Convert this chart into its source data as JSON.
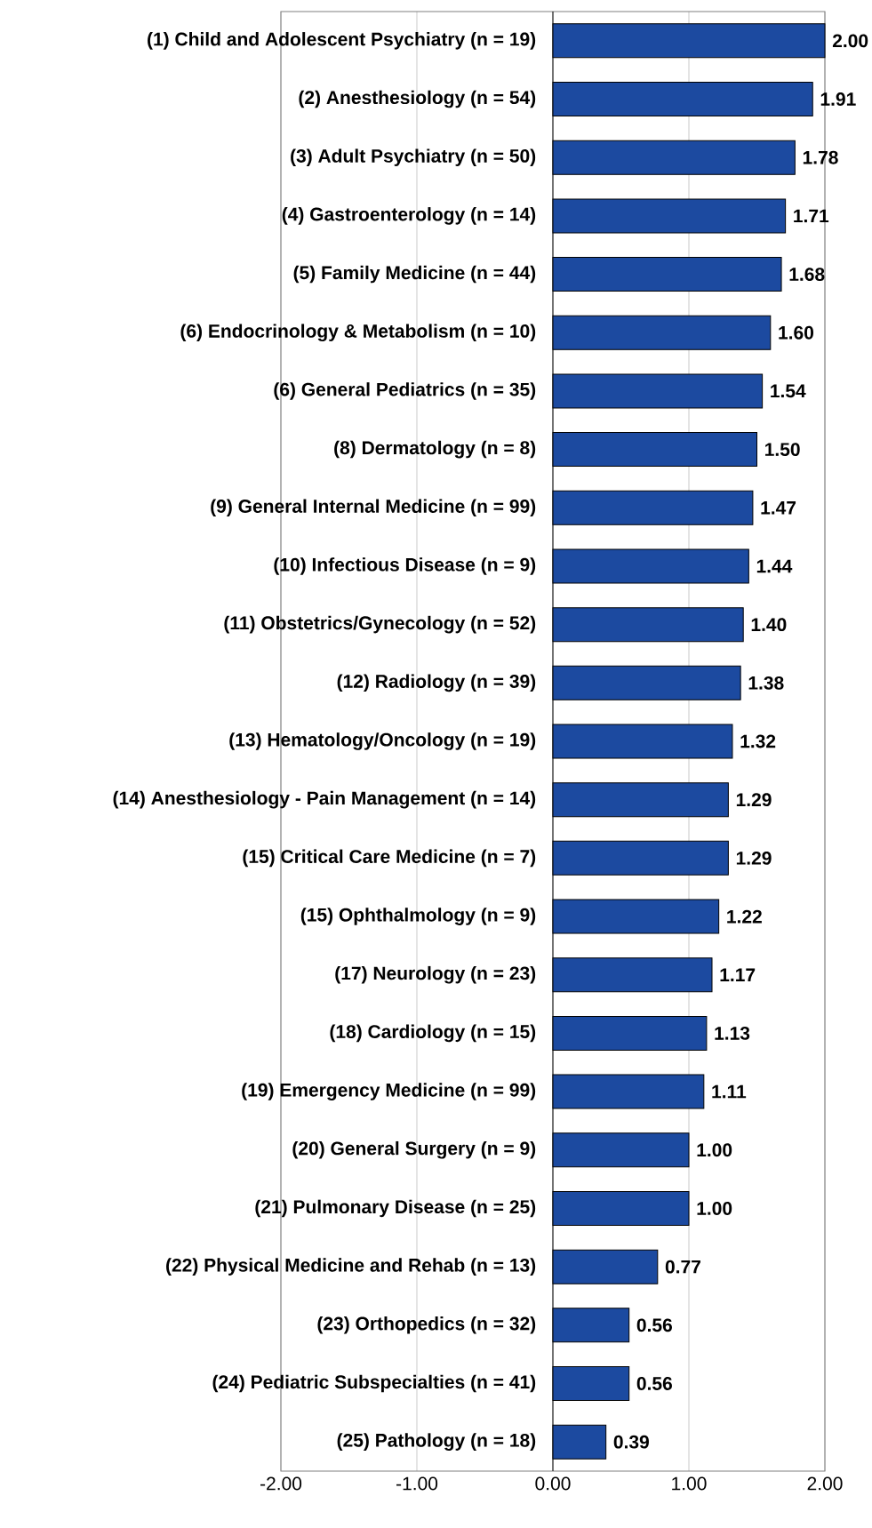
{
  "chart_data": {
    "type": "bar",
    "orientation": "horizontal",
    "color": "#1c4aa0",
    "categories": [
      "(1) Child and Adolescent Psychiatry (n = 19)",
      "(2) Anesthesiology (n = 54)",
      "(3) Adult Psychiatry (n = 50)",
      "(4) Gastroenterology (n = 14)",
      "(5) Family Medicine (n = 44)",
      "(6) Endocrinology & Metabolism (n = 10)",
      "(6) General Pediatrics (n = 35)",
      "(8) Dermatology (n = 8)",
      "(9) General Internal Medicine (n = 99)",
      "(10) Infectious Disease (n = 9)",
      "(11) Obstetrics/Gynecology (n = 52)",
      "(12) Radiology (n = 39)",
      "(13) Hematology/Oncology (n = 19)",
      "(14) Anesthesiology - Pain Management (n = 14)",
      "(15) Critical Care Medicine (n = 7)",
      "(15) Ophthalmology (n = 9)",
      "(17) Neurology (n = 23)",
      "(18) Cardiology (n = 15)",
      "(19) Emergency Medicine (n = 99)",
      "(20) General Surgery (n = 9)",
      "(21) Pulmonary Disease (n = 25)",
      "(22) Physical Medicine and Rehab (n = 13)",
      "(23) Orthopedics (n = 32)",
      "(24) Pediatric Subspecialties (n = 41)",
      "(25) Pathology (n = 18)"
    ],
    "values": [
      2.0,
      1.91,
      1.78,
      1.71,
      1.68,
      1.6,
      1.54,
      1.5,
      1.47,
      1.44,
      1.4,
      1.38,
      1.32,
      1.29,
      1.29,
      1.22,
      1.17,
      1.13,
      1.11,
      1.0,
      1.0,
      0.77,
      0.56,
      0.56,
      0.39
    ],
    "value_labels": [
      "2.00",
      "1.91",
      "1.78",
      "1.71",
      "1.68",
      "1.60",
      "1.54",
      "1.50",
      "1.47",
      "1.44",
      "1.40",
      "1.38",
      "1.32",
      "1.29",
      "1.29",
      "1.22",
      "1.17",
      "1.13",
      "1.11",
      "1.00",
      "1.00",
      "0.77",
      "0.56",
      "0.56",
      "0.39"
    ],
    "xlim": [
      -2,
      2
    ],
    "xticks": [
      {
        "value": -2,
        "label": "-2.00"
      },
      {
        "value": -1,
        "label": "-1.00"
      },
      {
        "value": 0,
        "label": "0.00"
      },
      {
        "value": 1,
        "label": "1.00"
      },
      {
        "value": 2,
        "label": "2.00"
      }
    ],
    "grid": "x"
  }
}
